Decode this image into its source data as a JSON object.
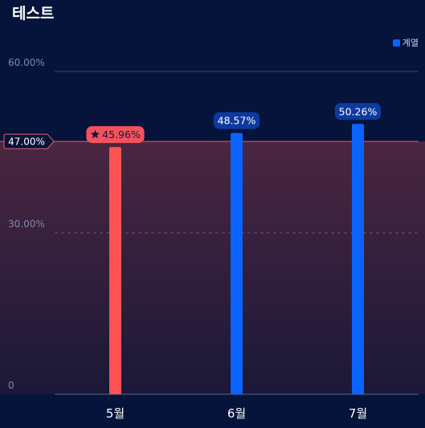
{
  "chart_data": {
    "type": "bar",
    "title": "테스트",
    "categories": [
      "5월",
      "6월",
      "7월"
    ],
    "series": [
      {
        "name": "계열",
        "values": [
          45.96,
          48.57,
          50.26
        ]
      }
    ],
    "value_labels": [
      "45.96%",
      "48.57%",
      "50.26%"
    ],
    "highlight_index": 0,
    "y_ticks": [
      {
        "value": 0,
        "label": "0"
      },
      {
        "value": 30,
        "label": "30.00%"
      },
      {
        "value": 60,
        "label": "60.00%"
      }
    ],
    "ylim": [
      0,
      60
    ],
    "target": {
      "value": 47,
      "label": "47.00%"
    },
    "legend_position": "top-right",
    "grid": true,
    "colors": {
      "bar": "#0a63ff",
      "highlight_bar": "#ff5252",
      "highlight_label_bg": "#f2525e",
      "label_bg": "#0d3aa0",
      "target_line": "#f05a6e",
      "target_band_top": "#4a2640",
      "target_band_bottom": "#1b1838",
      "background": "#06133a",
      "highlight_icon": "#1b1838"
    }
  }
}
